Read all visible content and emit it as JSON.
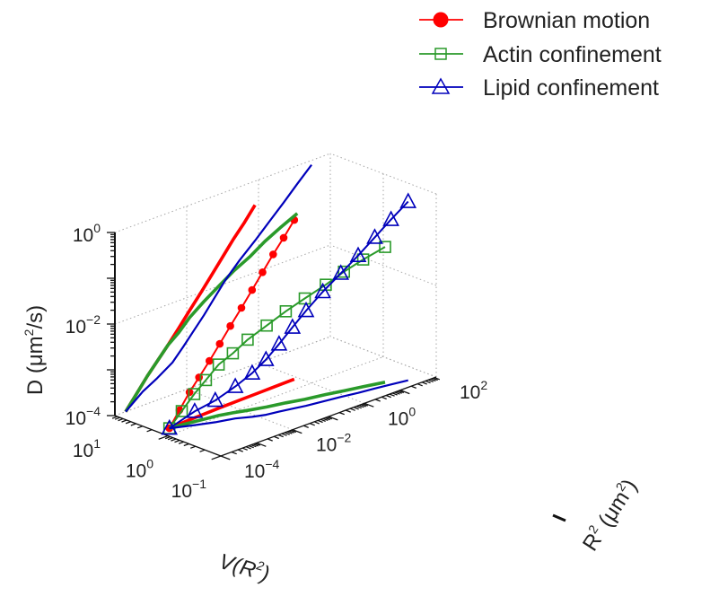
{
  "chart_data": {
    "type": "line",
    "view": "3d",
    "scale": "log",
    "axes": {
      "x": {
        "label": "V(R2)",
        "label_main": "V(R",
        "label_sup": "2",
        "label_end": ")",
        "range": [
          0.1,
          10
        ],
        "ticks": [
          {
            "base": "10",
            "exp": "1",
            "value": 10
          },
          {
            "base": "10",
            "exp": "0",
            "value": 1
          },
          {
            "base": "10",
            "exp": "−1",
            "value": 0.1
          }
        ]
      },
      "y": {
        "label": "R2 (μm2)",
        "label_main": "R",
        "label_sup": "2",
        "label_mid": " (μm",
        "label_sup2": "2",
        "label_end": ")",
        "range": [
          0.0001,
          100
        ],
        "ticks": [
          {
            "base": "10",
            "exp": "−4",
            "value": 0.0001
          },
          {
            "base": "10",
            "exp": "−2",
            "value": 0.01
          },
          {
            "base": "10",
            "exp": "0",
            "value": 1
          },
          {
            "base": "10",
            "exp": "2",
            "value": 100
          }
        ]
      },
      "z": {
        "label": "D (μm2/s)",
        "label_main": "D (μm",
        "label_sup": "2",
        "label_end": "/s)",
        "range": [
          0.0001,
          1
        ],
        "ticks": [
          {
            "base": "10",
            "exp": "−4",
            "value": 0.0001
          },
          {
            "base": "10",
            "exp": "−2",
            "value": 0.01
          },
          {
            "base": "10",
            "exp": "0",
            "value": 1
          }
        ]
      }
    },
    "grid": true,
    "legend": {
      "position": "top-right",
      "entries": [
        {
          "name": "Brownian motion",
          "color": "#ff0000",
          "marker": "circle"
        },
        {
          "name": "Actin confinement",
          "color": "#2a9a2a",
          "marker": "square"
        },
        {
          "name": "Lipid confinement",
          "color": "#0000bb",
          "marker": "triangle"
        }
      ]
    },
    "series": [
      {
        "name": "Brownian motion",
        "color": "#ff0000",
        "marker": "circle",
        "points": [
          {
            "v": 1.5,
            "r2": 0.0002,
            "d": 0.0001
          },
          {
            "v": 1.55,
            "r2": 0.0004,
            "d": 0.0002
          },
          {
            "v": 1.6,
            "r2": 0.0008,
            "d": 0.0004
          },
          {
            "v": 1.62,
            "r2": 0.0015,
            "d": 0.0007
          },
          {
            "v": 1.65,
            "r2": 0.003,
            "d": 0.0013
          },
          {
            "v": 1.68,
            "r2": 0.006,
            "d": 0.0025
          },
          {
            "v": 1.7,
            "r2": 0.012,
            "d": 0.005
          },
          {
            "v": 1.72,
            "r2": 0.025,
            "d": 0.01
          },
          {
            "v": 1.74,
            "r2": 0.05,
            "d": 0.02
          },
          {
            "v": 1.76,
            "r2": 0.1,
            "d": 0.04
          },
          {
            "v": 1.78,
            "r2": 0.2,
            "d": 0.08
          },
          {
            "v": 1.8,
            "r2": 0.4,
            "d": 0.15
          },
          {
            "v": 1.82,
            "r2": 0.8,
            "d": 0.3
          }
        ]
      },
      {
        "name": "Actin confinement",
        "color": "#2a9a2a",
        "marker": "square",
        "points": [
          {
            "v": 1.5,
            "r2": 0.0002,
            "d": 0.0001
          },
          {
            "v": 1.4,
            "r2": 0.0004,
            "d": 0.0002
          },
          {
            "v": 1.3,
            "r2": 0.0008,
            "d": 0.0004
          },
          {
            "v": 1.2,
            "r2": 0.0015,
            "d": 0.0007
          },
          {
            "v": 1.1,
            "r2": 0.003,
            "d": 0.0013
          },
          {
            "v": 0.95,
            "r2": 0.006,
            "d": 0.002
          },
          {
            "v": 0.8,
            "r2": 0.012,
            "d": 0.0035
          },
          {
            "v": 0.65,
            "r2": 0.03,
            "d": 0.006
          },
          {
            "v": 0.55,
            "r2": 0.08,
            "d": 0.01
          },
          {
            "v": 0.45,
            "r2": 0.2,
            "d": 0.016
          },
          {
            "v": 0.38,
            "r2": 0.6,
            "d": 0.025
          },
          {
            "v": 0.32,
            "r2": 1.5,
            "d": 0.04
          },
          {
            "v": 0.27,
            "r2": 4,
            "d": 0.06
          },
          {
            "v": 0.22,
            "r2": 12,
            "d": 0.09
          }
        ]
      },
      {
        "name": "Lipid confinement",
        "color": "#0000bb",
        "marker": "triangle",
        "points": [
          {
            "v": 1.5,
            "r2": 0.0002,
            "d": 0.0001
          },
          {
            "v": 1.05,
            "r2": 0.0006,
            "d": 0.0002
          },
          {
            "v": 0.8,
            "r2": 0.0015,
            "d": 0.0003
          },
          {
            "v": 0.65,
            "r2": 0.004,
            "d": 0.0005
          },
          {
            "v": 0.5,
            "r2": 0.008,
            "d": 0.0009
          },
          {
            "v": 0.42,
            "r2": 0.015,
            "d": 0.0016
          },
          {
            "v": 0.38,
            "r2": 0.03,
            "d": 0.003
          },
          {
            "v": 0.34,
            "r2": 0.06,
            "d": 0.006
          },
          {
            "v": 0.3,
            "r2": 0.12,
            "d": 0.012
          },
          {
            "v": 0.27,
            "r2": 0.3,
            "d": 0.025
          },
          {
            "v": 0.24,
            "r2": 0.8,
            "d": 0.05
          },
          {
            "v": 0.21,
            "r2": 2,
            "d": 0.1
          },
          {
            "v": 0.19,
            "r2": 5,
            "d": 0.2
          },
          {
            "v": 0.17,
            "r2": 12,
            "d": 0.4
          },
          {
            "v": 0.15,
            "r2": 30,
            "d": 0.8
          }
        ]
      }
    ]
  }
}
